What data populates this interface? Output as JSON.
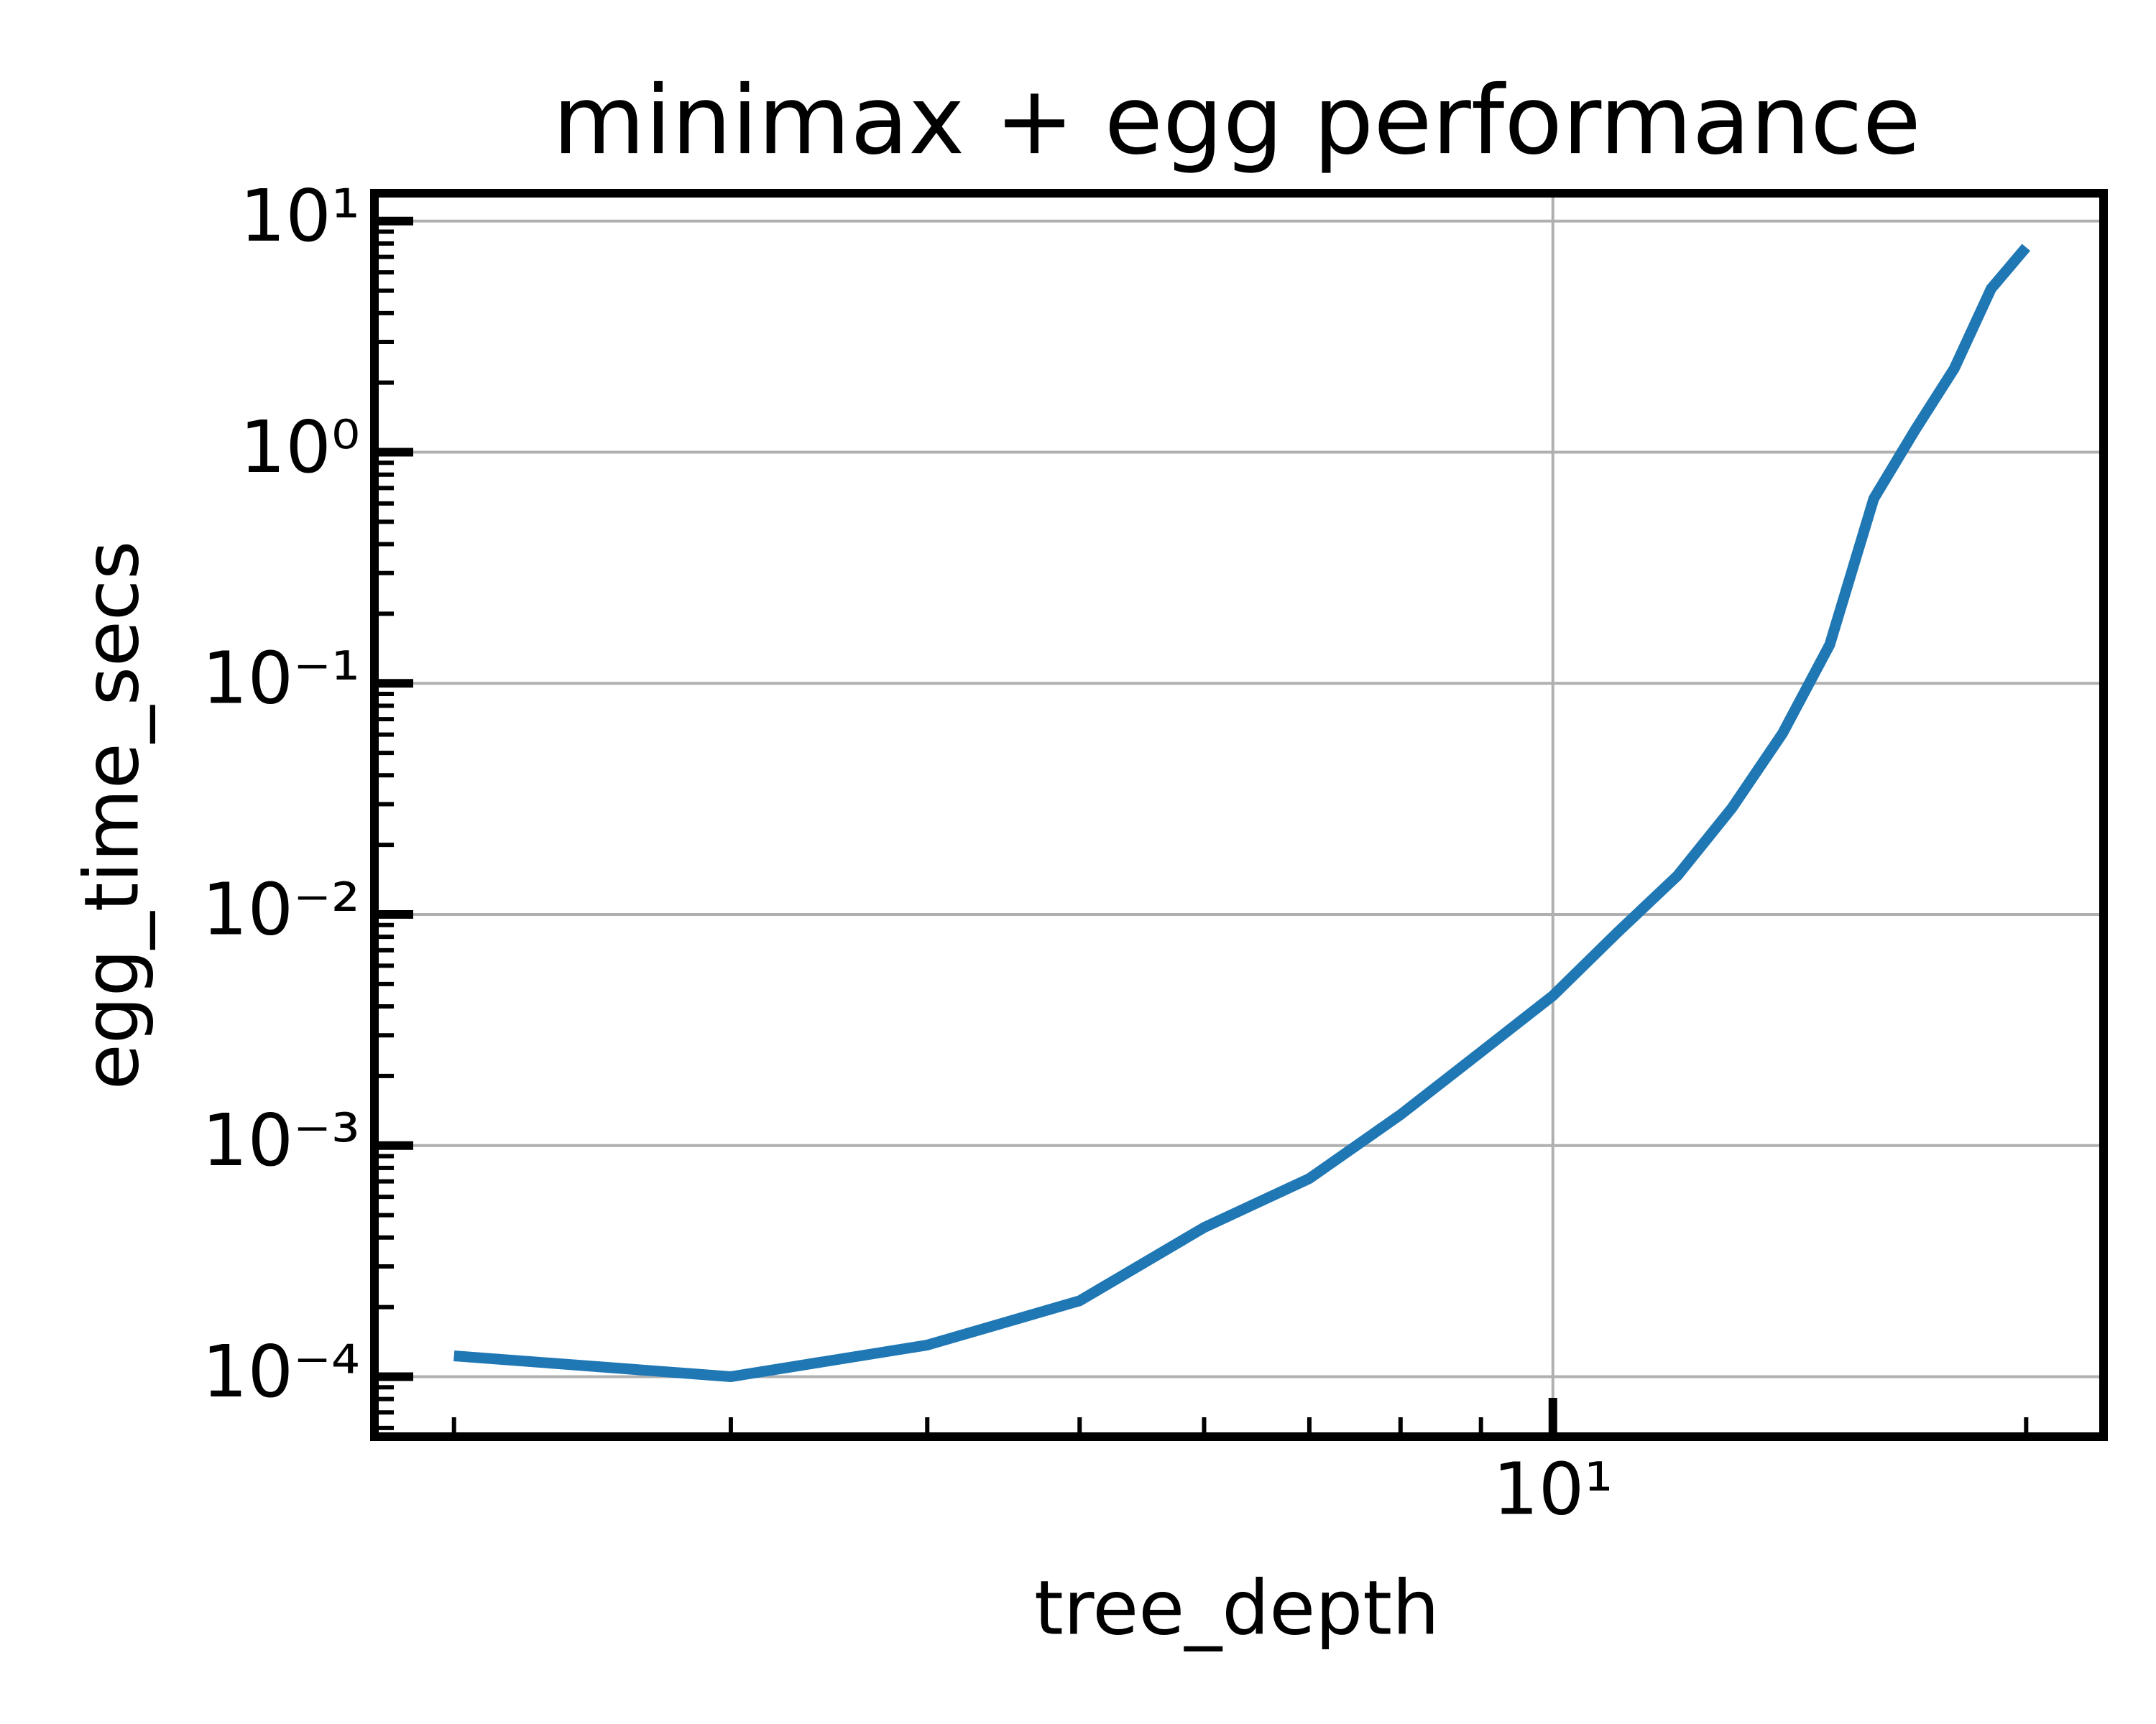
{
  "chart_data": {
    "type": "line",
    "title": "minimax + egg performance",
    "x_label": "tree_depth",
    "y_label": "egg_time_secs",
    "x": [
      2,
      3,
      4,
      5,
      6,
      7,
      8,
      9,
      10,
      11,
      12,
      13,
      14,
      15,
      16,
      17,
      18,
      19,
      20
    ],
    "series": [
      {
        "name": "egg_time_secs",
        "color": "#1f77b4",
        "values": [
          0.000123,
          0.0001,
          0.000137,
          0.000213,
          0.000442,
          0.00072,
          0.00136,
          0.00254,
          0.00445,
          0.0084,
          0.0147,
          0.0289,
          0.0608,
          0.147,
          0.63,
          1.25,
          2.3,
          5.1,
          7.7
        ]
      }
    ],
    "xscale": "log",
    "yscale": "log",
    "xlim": [
      1.78,
      22.4
    ],
    "ylim": [
      5.5e-05,
      13.2
    ],
    "xticks": [
      {
        "value": 10,
        "label": "10¹"
      }
    ],
    "yticks": [
      {
        "value": 0.0001,
        "label": "10⁻⁴"
      },
      {
        "value": 0.001,
        "label": "10⁻³"
      },
      {
        "value": 0.01,
        "label": "10⁻²"
      },
      {
        "value": 0.1,
        "label": "10⁻¹"
      },
      {
        "value": 1,
        "label": "10⁰"
      },
      {
        "value": 10,
        "label": "10¹"
      }
    ],
    "grid": true
  }
}
